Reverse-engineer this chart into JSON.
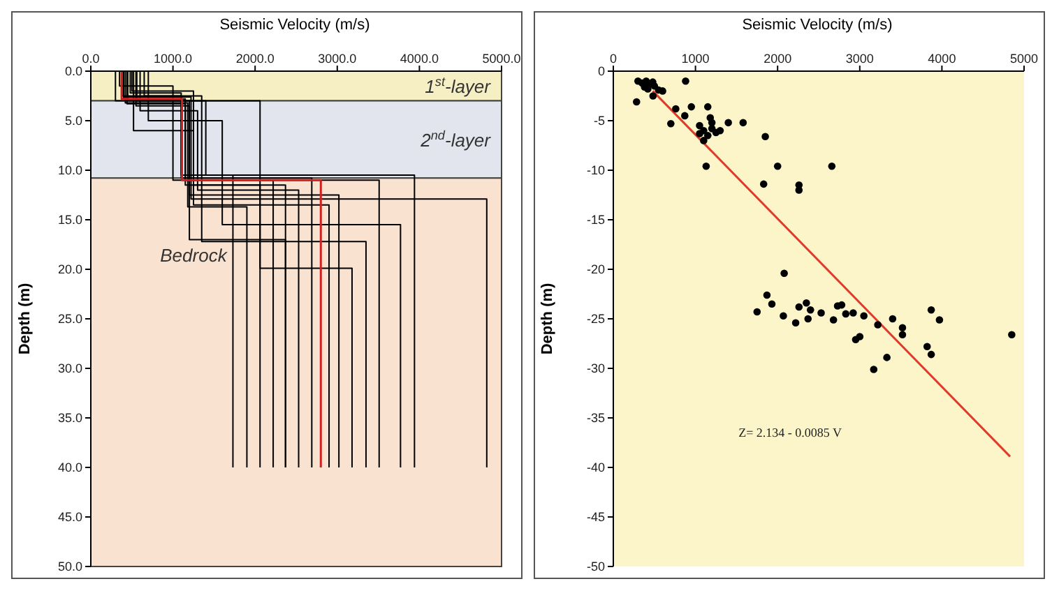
{
  "chart_data": [
    {
      "type": "line",
      "xlabel": "Seismic Velocity (m/s)",
      "ylabel": "Depth (m)",
      "marker": "none",
      "xlim": [
        0,
        5000
      ],
      "xticks": [
        {
          "value": 0,
          "label": "0.0"
        },
        {
          "value": 1000,
          "label": "1000.0"
        },
        {
          "value": 2000,
          "label": "2000.0"
        },
        {
          "value": 3000,
          "label": "3000.0"
        },
        {
          "value": 4000,
          "label": "4000.0"
        },
        {
          "value": 5000,
          "label": "5000.0"
        }
      ],
      "ylim": [
        50,
        0
      ],
      "yticks": [
        {
          "value": 0,
          "label": "0.0"
        },
        {
          "value": 5,
          "label": "5.0"
        },
        {
          "value": 10,
          "label": "10.0"
        },
        {
          "value": 15,
          "label": "15.0"
        },
        {
          "value": 20,
          "label": "20.0"
        },
        {
          "value": 25,
          "label": "25.0"
        },
        {
          "value": 30,
          "label": "30.0"
        },
        {
          "value": 35,
          "label": "35.0"
        },
        {
          "value": 40,
          "label": "40.0"
        },
        {
          "value": 45,
          "label": "45.0"
        },
        {
          "value": 50,
          "label": "50.0"
        }
      ],
      "bands": [
        {
          "axis": "y",
          "from": 0,
          "to": 3,
          "label": "1$^{st}$-layer",
          "color": "#f6efc4"
        },
        {
          "axis": "y",
          "from": 3,
          "to": 10.8,
          "label": "2$^{nd}$-layer",
          "color": "#e2e4ee"
        },
        {
          "axis": "y",
          "from": 10.8,
          "to": 50,
          "label": "Bedrock",
          "color": "#f9e2d0"
        }
      ],
      "series": [
        {
          "color": "#000000",
          "x": [
            380,
            380,
            1100,
            1100,
            1730,
            1730
          ],
          "values": [
            0,
            2.5,
            2.5,
            10.5,
            10.5,
            40
          ]
        },
        {
          "color": "#000000",
          "x": [
            420,
            420,
            1180,
            1180,
            1900,
            1900
          ],
          "values": [
            0,
            3.2,
            3.2,
            13.7,
            13.7,
            40
          ]
        },
        {
          "color": "#000000",
          "x": [
            500,
            500,
            1250,
            1250,
            2060,
            2060
          ],
          "values": [
            0,
            2,
            2,
            11.5,
            11.5,
            40
          ]
        },
        {
          "color": "#000000",
          "x": [
            450,
            450,
            2060,
            2060,
            3180,
            3180
          ],
          "values": [
            0,
            3,
            3,
            19.9,
            19.9,
            40
          ]
        },
        {
          "color": "#000000",
          "x": [
            350,
            350,
            1000,
            1000,
            2220,
            2220
          ],
          "values": [
            0,
            1.5,
            1.5,
            11,
            11,
            40
          ]
        },
        {
          "color": "#000000",
          "x": [
            550,
            550,
            1200,
            1200,
            2370,
            2370
          ],
          "values": [
            0,
            3.5,
            3.5,
            17,
            17,
            40
          ]
        },
        {
          "color": "#000000",
          "x": [
            400,
            400,
            1150,
            1150,
            2370,
            2370
          ],
          "values": [
            0,
            2.8,
            2.8,
            11.5,
            11.5,
            40
          ]
        },
        {
          "color": "#000000",
          "x": [
            600,
            600,
            1300,
            1300,
            2530,
            2530
          ],
          "values": [
            0,
            4,
            4,
            12,
            12,
            40
          ]
        },
        {
          "color": "#000000",
          "x": [
            480,
            480,
            1100,
            1100,
            2690,
            2690
          ],
          "values": [
            0,
            2.2,
            2.2,
            10.8,
            10.8,
            40
          ]
        },
        {
          "color": "#000000",
          "x": [
            520,
            520,
            1250,
            1250,
            2900,
            2900
          ],
          "values": [
            0,
            6,
            6,
            13.5,
            13.5,
            40
          ]
        },
        {
          "color": "#000000",
          "x": [
            300,
            300,
            1200,
            1200,
            3020,
            3020
          ],
          "values": [
            0,
            3,
            3,
            12.5,
            12.5,
            40
          ]
        },
        {
          "color": "#000000",
          "x": [
            650,
            650,
            1350,
            1350,
            3350,
            3350
          ],
          "values": [
            0,
            2.5,
            2.5,
            17.2,
            17.2,
            40
          ]
        },
        {
          "color": "#000000",
          "x": [
            440,
            440,
            1150,
            1150,
            3510,
            3510
          ],
          "values": [
            0,
            3.3,
            3.3,
            11,
            11,
            40
          ]
        },
        {
          "color": "#000000",
          "x": [
            700,
            700,
            1600,
            1600,
            3770,
            3770
          ],
          "values": [
            0,
            5,
            5,
            15.5,
            15.5,
            40
          ]
        },
        {
          "color": "#000000",
          "x": [
            560,
            560,
            1400,
            1400,
            3940,
            3940
          ],
          "values": [
            0,
            3,
            3,
            10.5,
            10.5,
            40
          ]
        },
        {
          "color": "#000000",
          "x": [
            400,
            400,
            1220,
            1220,
            4820,
            4820
          ],
          "values": [
            0,
            2.6,
            2.6,
            12.9,
            12.9,
            40
          ]
        },
        {
          "color": "#d02020",
          "x": [
            375,
            375,
            1110,
            1110,
            2800,
            2800
          ],
          "values": [
            0,
            2.8,
            2.8,
            11,
            11,
            40
          ]
        }
      ]
    },
    {
      "type": "scatter",
      "xlabel": "Seismic Velocity (m/s)",
      "ylabel": "Depth (m)",
      "marker": "circle",
      "xlim": [
        0,
        5000
      ],
      "xticks": [
        0,
        1000,
        2000,
        3000,
        4000,
        5000
      ],
      "ylim": [
        -50,
        0
      ],
      "yticks": [
        -50,
        -45,
        -40,
        -35,
        -30,
        -25,
        -20,
        -15,
        -10,
        -5,
        0
      ],
      "annotations": [
        "Z= 2.134 - 0.0085 V"
      ],
      "series": [
        {
          "type": "scatter",
          "color": "#000000",
          "x": [
            300,
            350,
            400,
            450,
            500,
            380,
            420,
            550,
            480,
            600,
            483,
            283,
            880,
            760,
            700,
            950,
            870,
            1150,
            1180,
            1050,
            1100,
            1150,
            1200,
            1250,
            1100,
            1050,
            1200,
            1300,
            1400,
            1580,
            1850,
            1130,
            2000,
            2660,
            1830,
            2260,
            2260,
            1750,
            1870,
            1930,
            2080,
            2070,
            2220,
            2260,
            2350,
            2370,
            2400,
            2530,
            2680,
            2730,
            2780,
            2830,
            2920,
            2950,
            3000,
            3050,
            3170,
            3220,
            3330,
            3400,
            3520,
            3520,
            3820,
            3870,
            3870,
            3970,
            4850
          ],
          "values": [
            -1.0,
            -1.2,
            -1.0,
            -1.3,
            -1.5,
            -1.6,
            -1.8,
            -1.9,
            -1.1,
            -2.0,
            -2.5,
            -3.1,
            -1.0,
            -3.8,
            -5.3,
            -3.6,
            -4.5,
            -3.6,
            -4.7,
            -5.5,
            -6.0,
            -6.5,
            -5.8,
            -6.2,
            -7.0,
            -6.3,
            -5.2,
            -6.0,
            -5.2,
            -5.2,
            -6.6,
            -9.6,
            -9.6,
            -9.6,
            -11.4,
            -11.5,
            -12.0,
            -24.3,
            -22.6,
            -23.5,
            -20.4,
            -24.7,
            -25.4,
            -23.8,
            -23.4,
            -25.0,
            -24.1,
            -24.4,
            -25.1,
            -23.7,
            -23.6,
            -24.5,
            -24.4,
            -27.1,
            -26.8,
            -24.7,
            -30.1,
            -25.6,
            -28.9,
            -25.0,
            -25.9,
            -26.6,
            -27.8,
            -28.6,
            -24.1,
            -25.1,
            -26.6
          ]
        },
        {
          "type": "line",
          "marker": "none",
          "color": "#e03a2a",
          "x": [
            480,
            4830
          ],
          "values": [
            -2.0,
            -38.9
          ]
        }
      ]
    }
  ]
}
